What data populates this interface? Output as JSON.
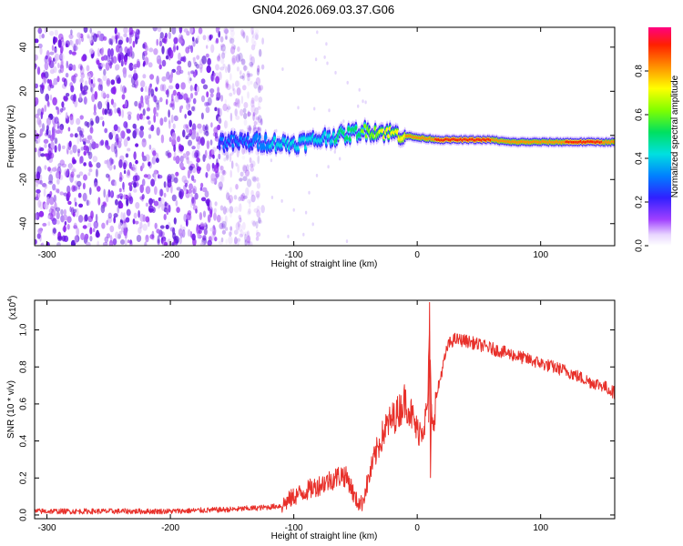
{
  "figure_title": "GN04.2026.069.03.37.G06",
  "colors": {
    "snr_line": "#e8302a",
    "axis": "#000000",
    "noise": "#8c1ff0"
  },
  "chart_data": [
    {
      "type": "heatmap",
      "title": "",
      "xlabel": "Height of straight line (km)",
      "ylabel": "Frequency (Hz)",
      "xlim": [
        -310,
        160
      ],
      "ylim": [
        -50,
        49
      ],
      "xticks": [
        -300,
        -200,
        -100,
        0,
        100
      ],
      "xtick_labels": [
        "-300",
        "-200",
        "-100",
        "0",
        "100"
      ],
      "yticks": [
        -40,
        -20,
        0,
        20,
        40
      ],
      "ytick_labels": [
        "-40",
        "-20",
        "0",
        "20",
        "40"
      ],
      "colorbar": {
        "label": "Normalized spectral amplitude",
        "range": [
          0,
          1
        ],
        "ticks": [
          0.0,
          0.2,
          0.4,
          0.6,
          0.8
        ],
        "tick_labels": [
          "0.0",
          "0.2",
          "0.4",
          "0.6",
          "0.8"
        ]
      },
      "noise_region_km": [
        -310,
        -125
      ],
      "signal_track": [
        {
          "x": -160,
          "f": -3,
          "amp": 0.2
        },
        {
          "x": -140,
          "f": -3,
          "amp": 0.25
        },
        {
          "x": -120,
          "f": -3,
          "amp": 0.3
        },
        {
          "x": -105,
          "f": -4,
          "amp": 0.32
        },
        {
          "x": -90,
          "f": -3,
          "amp": 0.35
        },
        {
          "x": -75,
          "f": -1,
          "amp": 0.38
        },
        {
          "x": -60,
          "f": 0,
          "amp": 0.42
        },
        {
          "x": -45,
          "f": 2,
          "amp": 0.5
        },
        {
          "x": -35,
          "f": 2,
          "amp": 0.58
        },
        {
          "x": -20,
          "f": 1,
          "amp": 0.65
        },
        {
          "x": -10,
          "f": 0,
          "amp": 0.7
        },
        {
          "x": 0,
          "f": -1,
          "amp": 0.75
        },
        {
          "x": 20,
          "f": -2,
          "amp": 0.82
        },
        {
          "x": 40,
          "f": -2,
          "amp": 0.85
        },
        {
          "x": 60,
          "f": -2,
          "amp": 0.8
        },
        {
          "x": 75,
          "f": -3,
          "amp": 0.7
        },
        {
          "x": 90,
          "f": -3,
          "amp": 0.8
        },
        {
          "x": 110,
          "f": -3,
          "amp": 0.75
        },
        {
          "x": 130,
          "f": -3,
          "amp": 0.85
        },
        {
          "x": 150,
          "f": -3,
          "amp": 0.8
        },
        {
          "x": 160,
          "f": -3,
          "amp": 0.75
        }
      ]
    },
    {
      "type": "line",
      "title": "",
      "xlabel": "Height of straight line (km)",
      "ylabel": "SNR (10 * v/v)",
      "y_scale_label": "(x10",
      "y_scale_exp": "4",
      "xlim": [
        -310,
        160
      ],
      "ylim": [
        -0.02,
        1.16
      ],
      "xticks": [
        -300,
        -200,
        -100,
        0,
        100
      ],
      "xtick_labels": [
        "-300",
        "-200",
        "-100",
        "0",
        "100"
      ],
      "yticks": [
        0.0,
        0.2,
        0.4,
        0.6,
        0.8,
        1.0
      ],
      "ytick_labels": [
        "0.0",
        "0.2",
        "0.4",
        "0.6",
        "0.8",
        "1.0"
      ],
      "series": [
        {
          "name": "SNR",
          "x": [
            -310,
            -250,
            -200,
            -150,
            -125,
            -110,
            -100,
            -90,
            -80,
            -70,
            -60,
            -55,
            -50,
            -45,
            -40,
            -35,
            -30,
            -25,
            -20,
            -15,
            -10,
            -5,
            0,
            5,
            8,
            10,
            12,
            15,
            20,
            25,
            30,
            40,
            50,
            60,
            70,
            80,
            90,
            100,
            110,
            120,
            130,
            140,
            150,
            160
          ],
          "y": [
            0.02,
            0.02,
            0.02,
            0.03,
            0.04,
            0.05,
            0.1,
            0.13,
            0.16,
            0.19,
            0.22,
            0.18,
            0.08,
            0.06,
            0.18,
            0.3,
            0.4,
            0.48,
            0.52,
            0.56,
            0.62,
            0.55,
            0.45,
            0.48,
            0.55,
            0.9,
            0.45,
            0.62,
            0.78,
            0.92,
            0.95,
            0.94,
            0.92,
            0.9,
            0.88,
            0.86,
            0.84,
            0.82,
            0.8,
            0.78,
            0.75,
            0.72,
            0.7,
            0.66
          ],
          "high_variability_range_km": [
            -110,
            15
          ],
          "noise_amplitude": [
            0.015,
            0.14,
            0.015
          ]
        }
      ]
    }
  ]
}
